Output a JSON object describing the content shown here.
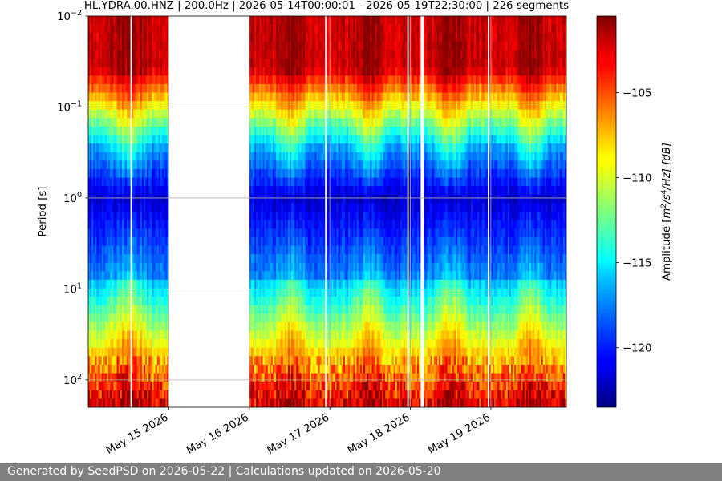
{
  "chart_data": {
    "type": "heatmap",
    "title": "HL.YDRA.00.HNZ | 200.0Hz | 2026-05-14T00:00:01 - 2026-05-19T22:30:00 | 226 segments",
    "ylabel": "Period [s]",
    "yscale": "log",
    "y_range_s": [
      0.01,
      200
    ],
    "y_ticks": [
      {
        "value": 0.01,
        "mant": "10",
        "exp": "−2"
      },
      {
        "value": 0.1,
        "mant": "10",
        "exp": "−1"
      },
      {
        "value": 1,
        "mant": "10",
        "exp": "0"
      },
      {
        "value": 10,
        "mant": "10",
        "exp": "1"
      },
      {
        "value": 100,
        "mant": "10",
        "exp": "2"
      }
    ],
    "x_range": [
      "2026-05-14T00:00:01",
      "2026-05-19T22:30:00"
    ],
    "x_ticks": [
      {
        "date": "2026-05-15",
        "label": "May 15 2026"
      },
      {
        "date": "2026-05-16",
        "label": "May 16 2026"
      },
      {
        "date": "2026-05-17",
        "label": "May 17 2026"
      },
      {
        "date": "2026-05-18",
        "label": "May 18 2026"
      },
      {
        "date": "2026-05-19",
        "label": "May 19 2026"
      }
    ],
    "grid": true,
    "data_gaps": [
      {
        "start": "2026-05-14T12:30",
        "end": "2026-05-14T13:00"
      },
      {
        "start": "2026-05-15T00:00",
        "end": "2026-05-16T00:00"
      },
      {
        "start": "2026-05-16T22:30",
        "end": "2026-05-16T23:00"
      },
      {
        "start": "2026-05-17T23:00",
        "end": "2026-05-17T23:30"
      },
      {
        "start": "2026-05-18T03:00",
        "end": "2026-05-18T04:00"
      },
      {
        "start": "2026-05-18T23:00",
        "end": "2026-05-18T23:30"
      }
    ],
    "colorbar": {
      "label": "Amplitude [m²/s⁴/Hz] [dB]",
      "label_base": "Amplitude [",
      "label_unit_tail": "/Hz] [dB]",
      "range_db": [
        -123.5,
        -100.5
      ],
      "ticks": [
        -105,
        -110,
        -115,
        -120
      ],
      "colormap": "jet"
    }
  },
  "footer": {
    "text": "Generated by SeedPSD on 2026-05-22 | Calculations updated on 2026-05-20"
  }
}
